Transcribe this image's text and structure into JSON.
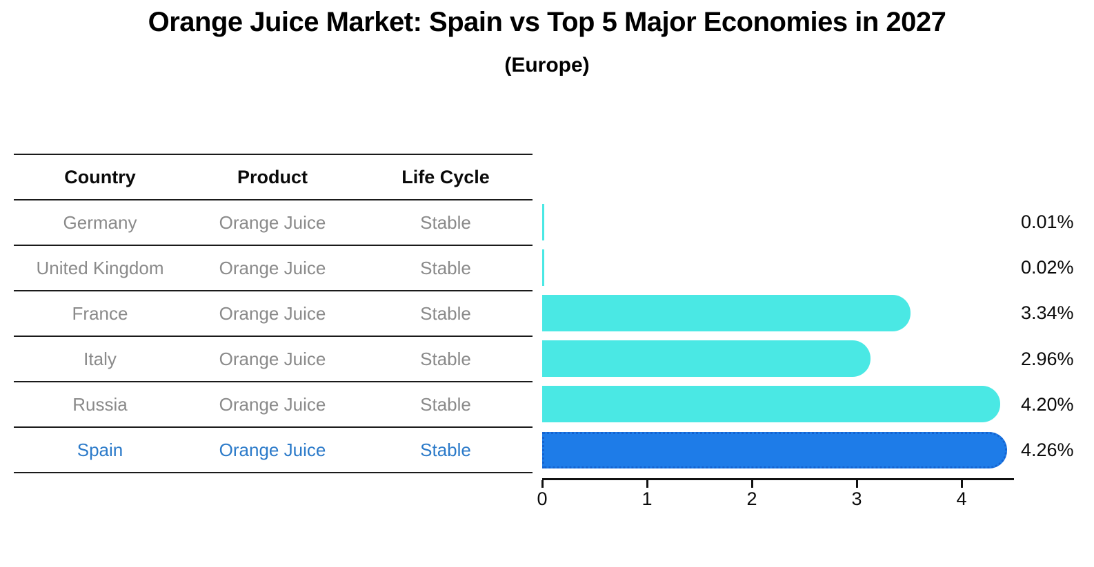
{
  "title": "Orange Juice Market: Spain vs Top 5 Major Economies in 2027",
  "subtitle": "(Europe)",
  "table": {
    "headers": [
      "Country",
      "Product",
      "Life Cycle"
    ],
    "rows": [
      {
        "country": "Germany",
        "product": "Orange Juice",
        "life_cycle": "Stable",
        "highlighted": false
      },
      {
        "country": "United Kingdom",
        "product": "Orange Juice",
        "life_cycle": "Stable",
        "highlighted": false
      },
      {
        "country": "France",
        "product": "Orange Juice",
        "life_cycle": "Stable",
        "highlighted": false
      },
      {
        "country": "Italy",
        "product": "Orange Juice",
        "life_cycle": "Stable",
        "highlighted": false
      },
      {
        "country": "Russia",
        "product": "Orange Juice",
        "life_cycle": "Stable",
        "highlighted": false
      },
      {
        "country": "Spain",
        "product": "Orange Juice",
        "life_cycle": "Stable",
        "highlighted": true
      }
    ]
  },
  "chart_data": {
    "type": "bar",
    "orientation": "horizontal",
    "title": "Orange Juice Market: Spain vs Top 5 Major Economies in 2027",
    "subtitle": "(Europe)",
    "categories": [
      "Germany",
      "United Kingdom",
      "France",
      "Italy",
      "Russia",
      "Spain"
    ],
    "values": [
      0.01,
      0.02,
      3.34,
      2.96,
      4.2,
      4.26
    ],
    "value_labels": [
      "0.01%",
      "0.02%",
      "3.34%",
      "2.96%",
      "4.20%",
      "4.26%"
    ],
    "x_ticks": [
      0,
      1,
      2,
      3,
      4
    ],
    "xlim": [
      0,
      4.5
    ],
    "grid": false,
    "legend": false,
    "highlight_index": 5,
    "bar_color": "#4ae8e4",
    "highlight_bar_color": "#1e7ce8",
    "highlight_border_color": "#1463d0",
    "highlight_text_color": "#2b7ac9",
    "table_text_color": "#8a8a8a",
    "axis_color": "#111111"
  }
}
